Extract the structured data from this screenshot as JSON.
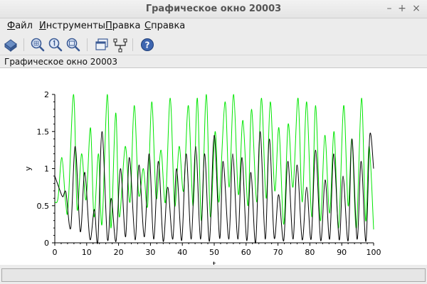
{
  "window": {
    "title": "Графическое окно 20003",
    "controls": [
      "–",
      "+",
      "×"
    ]
  },
  "menu": [
    {
      "accel": "Ф",
      "rest": "айл"
    },
    {
      "accel": "И",
      "rest": "нструменты"
    },
    {
      "accel": "П",
      "rest": "равка"
    },
    {
      "accel": "С",
      "rest": "правка"
    }
  ],
  "toolbar": {
    "icons": [
      "rotate-icon",
      "zoom-grid-icon",
      "zoom-one-icon",
      "zoom-out-icon",
      "window-icon",
      "datatip-icon",
      "help-icon"
    ]
  },
  "info": {
    "text": "Графическое окно 20003"
  },
  "status": {
    "text": ""
  },
  "colors": {
    "series_black": "#000000",
    "series_green": "#00e600"
  },
  "chart_data": {
    "type": "line",
    "xlabel": "t",
    "ylabel": "y",
    "xlim": [
      0,
      100
    ],
    "ylim": [
      0,
      2
    ],
    "x_ticks": [
      "0",
      "10",
      "20",
      "30",
      "40",
      "50",
      "60",
      "70",
      "80",
      "90",
      "100"
    ],
    "y_ticks": [
      "0",
      "0.5",
      "1",
      "1.5",
      "2"
    ],
    "grid": false,
    "series": [
      {
        "color": "#000000",
        "x": [
          0,
          1.5,
          2.5,
          3.5,
          5,
          6.4,
          8,
          9.4,
          11,
          12.4,
          13.5,
          14.8,
          16.5,
          17.7,
          19.2,
          20.6,
          22.2,
          23.4,
          25.2,
          26.4,
          28.1,
          29.6,
          31,
          32.5,
          34,
          35.4,
          37,
          38.2,
          39.8,
          41.2,
          42.8,
          44.2,
          45.7,
          47,
          48.5,
          50,
          51.7,
          52.8,
          54.6,
          55.8,
          57.4,
          58.7,
          60.2,
          61.5,
          63,
          64.4,
          66,
          67.3,
          68.8,
          70.2,
          71.8,
          73.1,
          74.7,
          76,
          77.6,
          79,
          80.4,
          81.8,
          83.4,
          84.8,
          86.2,
          87.5,
          89.2,
          90.4,
          92,
          93.2,
          94.8,
          96.1,
          97.6,
          98.8,
          100
        ],
        "y": [
          0.9,
          0.72,
          0.62,
          0.68,
          0.2,
          1.3,
          0.15,
          0.95,
          0.05,
          0.45,
          0.02,
          1.5,
          0.05,
          0.6,
          0.02,
          1.0,
          0.08,
          1.15,
          0.04,
          1.05,
          0.08,
          1.2,
          0.05,
          1.1,
          0.02,
          0.75,
          0.05,
          1.0,
          0.03,
          1.2,
          0.05,
          1.3,
          0.05,
          1.2,
          0.02,
          1.45,
          0.06,
          1.1,
          0.05,
          1.2,
          0.05,
          1.15,
          0.03,
          0.95,
          0.0,
          1.5,
          0.05,
          1.4,
          0.07,
          0.65,
          0.03,
          1.1,
          0.05,
          1.05,
          0.04,
          0.75,
          0.05,
          1.25,
          0.03,
          0.85,
          0.05,
          1.2,
          0.04,
          0.9,
          0.03,
          1.4,
          0.05,
          1.1,
          0.02,
          1.45,
          1.0
        ]
      },
      {
        "color": "#00e600",
        "x": [
          0,
          1,
          2.2,
          3.4,
          4.2,
          5.9,
          7,
          8.4,
          9.8,
          11.2,
          12.3,
          13.7,
          14.8,
          16.5,
          17.6,
          19.1,
          20.2,
          22.1,
          23.6,
          24.9,
          26.3,
          27.8,
          29.1,
          30.4,
          31.8,
          33.3,
          34.7,
          36.2,
          37.6,
          39,
          40.4,
          41.9,
          43.4,
          44.7,
          46,
          47.5,
          48.8,
          50.3,
          51.5,
          53.4,
          54.7,
          56.1,
          57.6,
          59,
          60.6,
          61.7,
          63.4,
          64.8,
          66.3,
          67.6,
          69,
          70.3,
          71.8,
          73.2,
          74.7,
          76.3,
          77.6,
          79,
          80.6,
          81.8,
          83.3,
          84.7,
          86.2,
          87.6,
          89,
          90.6,
          92,
          93.2,
          94.6,
          96.2,
          97.5,
          98.6,
          100
        ],
        "y": [
          0.55,
          0.6,
          1.15,
          0.55,
          0.5,
          2.0,
          0.45,
          1.2,
          0.58,
          1.55,
          0.35,
          1.2,
          0.25,
          2.0,
          0.2,
          1.75,
          0.35,
          1.3,
          0.55,
          1.85,
          0.65,
          1.0,
          0.5,
          1.9,
          0.6,
          1.25,
          0.55,
          1.95,
          0.5,
          1.3,
          0.7,
          1.85,
          0.5,
          1.95,
          0.3,
          2.0,
          0.35,
          1.5,
          0.55,
          1.9,
          0.75,
          2.0,
          0.65,
          1.65,
          0.5,
          1.8,
          0.55,
          1.95,
          0.6,
          1.9,
          0.7,
          1.55,
          0.25,
          1.6,
          0.75,
          1.95,
          0.55,
          1.9,
          0.35,
          1.85,
          0.3,
          1.45,
          0.4,
          1.5,
          0.2,
          1.85,
          0.5,
          1.4,
          0.2,
          1.95,
          0.3,
          1.3,
          0.18
        ]
      }
    ]
  }
}
